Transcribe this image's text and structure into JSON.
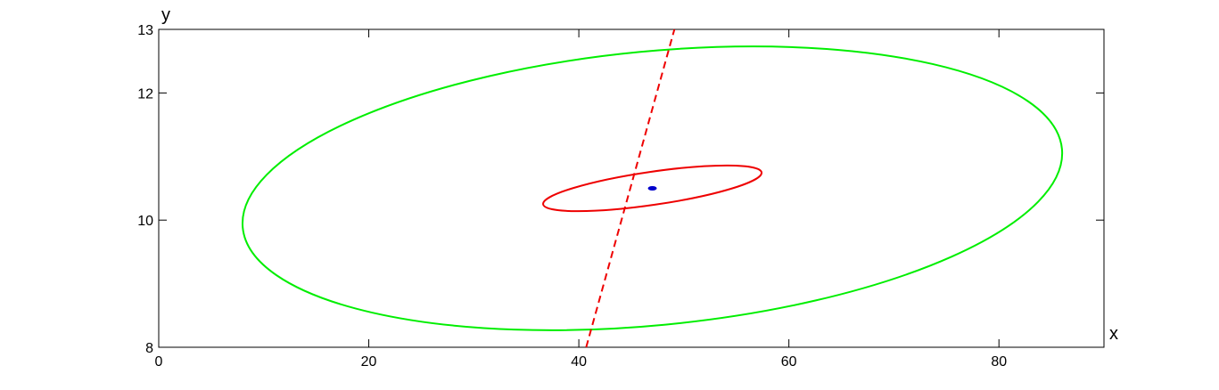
{
  "chart_data": {
    "type": "line",
    "title": "",
    "xlabel": "x",
    "ylabel": "y",
    "xlim": [
      0,
      90
    ],
    "ylim": [
      8,
      13
    ],
    "x_ticks": [
      0,
      20,
      40,
      60,
      80
    ],
    "y_ticks": [
      8,
      10,
      12,
      13
    ],
    "x_tick_labels": [
      "0",
      "20",
      "40",
      "60",
      "80"
    ],
    "y_tick_labels": [
      "8",
      "10",
      "12",
      "13"
    ],
    "grid": false,
    "legend": "none",
    "series": [
      {
        "kind": "ellipse",
        "color": "#00ee00",
        "line_style": "solid",
        "center": [
          47,
          10.5
        ],
        "vertices": [
          [
            8,
            9.88
          ],
          [
            86,
            11.05
          ]
        ],
        "co_vertices": [
          [
            44.1,
            12.6
          ],
          [
            49.7,
            8.37
          ]
        ]
      },
      {
        "kind": "ellipse",
        "color": "#ee0000",
        "line_style": "solid",
        "center": [
          47,
          10.5
        ],
        "vertices": [
          [
            36.6,
            10.25
          ],
          [
            57.2,
            10.75
          ]
        ],
        "co_vertices": [
          [
            46.9,
            10.76
          ],
          [
            47.1,
            10.24
          ]
        ]
      },
      {
        "kind": "line",
        "color": "#ee0000",
        "line_style": "dashed",
        "points": [
          [
            40.7,
            8.0
          ],
          [
            49.1,
            13.0
          ]
        ]
      },
      {
        "kind": "point",
        "color": "#0000cc",
        "x": 47.0,
        "y": 10.5
      }
    ]
  }
}
